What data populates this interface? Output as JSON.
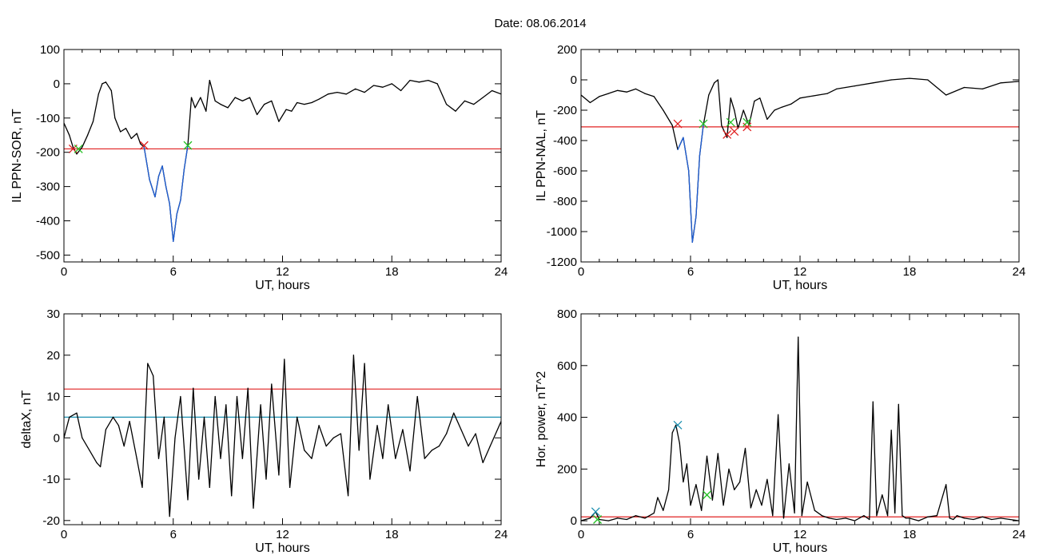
{
  "page_title": "Date:  08.06.2014",
  "chart_data": [
    {
      "type": "line",
      "panel": "top-left",
      "xlabel": "UT, hours",
      "ylabel": "IL PPN-SOR, nT",
      "xlim": [
        0,
        24
      ],
      "ylim": [
        -520,
        100
      ],
      "xticks": [
        0,
        6,
        12,
        18,
        24
      ],
      "yticks": [
        100,
        0,
        -100,
        -200,
        -300,
        -400,
        -500
      ],
      "series": [
        {
          "color": "#000000",
          "x": [
            0,
            0.3,
            0.5,
            0.7,
            1.0,
            1.3,
            1.6,
            1.9,
            2.1,
            2.3,
            2.6,
            2.8,
            3.1,
            3.4,
            3.7,
            4.0,
            4.2,
            4.4,
            4.7,
            5.0,
            5.2,
            5.4,
            5.6,
            5.8,
            6.0,
            6.2,
            6.4,
            6.6,
            6.8,
            7.0,
            7.2,
            7.5,
            7.8,
            8.0,
            8.3,
            8.6,
            9.0,
            9.4,
            9.8,
            10.2,
            10.6,
            11.0,
            11.4,
            11.8,
            12.2,
            12.5,
            12.8,
            13.2,
            13.6,
            14.0,
            14.5,
            15.0,
            15.5,
            16.0,
            16.5,
            17.0,
            17.5,
            18.0,
            18.5,
            19.0,
            19.5,
            20.0,
            20.5,
            21.0,
            21.5,
            22.0,
            22.5,
            23.0,
            23.5,
            24.0
          ],
          "y": [
            -115,
            -150,
            -185,
            -205,
            -185,
            -150,
            -110,
            -30,
            0,
            5,
            -20,
            -100,
            -140,
            -130,
            -160,
            -145,
            -175,
            -185,
            -280,
            -330,
            -270,
            -240,
            -300,
            -350,
            -460,
            -380,
            -340,
            -250,
            -180,
            -40,
            -70,
            -40,
            -80,
            10,
            -50,
            -60,
            -70,
            -40,
            -50,
            -40,
            -90,
            -60,
            -50,
            -110,
            -75,
            -80,
            -55,
            -60,
            -55,
            -45,
            -30,
            -25,
            -30,
            -15,
            -25,
            -5,
            -10,
            0,
            -20,
            10,
            5,
            10,
            0,
            -60,
            -80,
            -50,
            -60,
            -40,
            -20,
            -30
          ]
        },
        {
          "color": "#1f5fd6",
          "x": [
            4.4,
            4.7,
            5.0,
            5.2,
            5.4,
            5.6,
            5.8,
            6.0,
            6.2,
            6.4,
            6.6,
            6.8
          ],
          "y": [
            -185,
            -280,
            -330,
            -270,
            -240,
            -300,
            -350,
            -460,
            -380,
            -340,
            -250,
            -180
          ]
        }
      ],
      "thresholds": [
        {
          "color": "#e02020",
          "y": -190
        }
      ],
      "markers": [
        {
          "symbol": "x",
          "color": "#e02020",
          "x": 0.5,
          "y": -190
        },
        {
          "symbol": "x",
          "color": "#22c022",
          "x": 0.8,
          "y": -190
        },
        {
          "symbol": "x",
          "color": "#e02020",
          "x": 4.4,
          "y": -180
        },
        {
          "symbol": "x",
          "color": "#22c022",
          "x": 6.8,
          "y": -180
        }
      ]
    },
    {
      "type": "line",
      "panel": "top-right",
      "xlabel": "UT, hours",
      "ylabel": "IL PPN-NAL, nT",
      "xlim": [
        0,
        24
      ],
      "ylim": [
        -1200,
        200
      ],
      "xticks": [
        0,
        6,
        12,
        18,
        24
      ],
      "yticks": [
        200,
        0,
        -200,
        -400,
        -600,
        -800,
        -1000,
        -1200
      ],
      "series": [
        {
          "color": "#000000",
          "x": [
            0,
            0.5,
            1.0,
            1.5,
            2.0,
            2.5,
            3.0,
            3.5,
            4.0,
            4.5,
            5.0,
            5.3,
            5.6,
            5.9,
            6.1,
            6.3,
            6.5,
            6.7,
            7.0,
            7.3,
            7.5,
            7.7,
            8.0,
            8.2,
            8.4,
            8.6,
            8.9,
            9.2,
            9.5,
            9.8,
            10.2,
            10.6,
            11.0,
            11.5,
            12.0,
            12.5,
            13.0,
            13.5,
            14.0,
            14.5,
            15.0,
            16.0,
            17.0,
            18.0,
            19.0,
            20.0,
            21.0,
            22.0,
            23.0,
            24.0
          ],
          "y": [
            -100,
            -150,
            -110,
            -90,
            -70,
            -80,
            -60,
            -90,
            -110,
            -200,
            -300,
            -460,
            -380,
            -600,
            -1070,
            -900,
            -500,
            -300,
            -100,
            -20,
            0,
            -300,
            -380,
            -120,
            -200,
            -320,
            -200,
            -300,
            -140,
            -120,
            -260,
            -200,
            -180,
            -160,
            -120,
            -110,
            -100,
            -90,
            -60,
            -50,
            -40,
            -20,
            0,
            10,
            0,
            -100,
            -50,
            -60,
            -20,
            -10
          ]
        },
        {
          "color": "#1f5fd6",
          "x": [
            5.3,
            5.6,
            5.9,
            6.1,
            6.3,
            6.5,
            6.7
          ],
          "y": [
            -460,
            -380,
            -600,
            -1070,
            -900,
            -500,
            -300
          ]
        }
      ],
      "thresholds": [
        {
          "color": "#e02020",
          "y": -310
        }
      ],
      "markers": [
        {
          "symbol": "x",
          "color": "#e02020",
          "x": 5.3,
          "y": -290
        },
        {
          "symbol": "x",
          "color": "#22c022",
          "x": 6.7,
          "y": -290
        },
        {
          "symbol": "x",
          "color": "#e02020",
          "x": 8.0,
          "y": -360
        },
        {
          "symbol": "x",
          "color": "#22c022",
          "x": 8.2,
          "y": -280
        },
        {
          "symbol": "x",
          "color": "#e02020",
          "x": 8.4,
          "y": -340
        },
        {
          "symbol": "x",
          "color": "#e02020",
          "x": 9.1,
          "y": -310
        },
        {
          "symbol": "x",
          "color": "#22c022",
          "x": 9.1,
          "y": -280
        }
      ]
    },
    {
      "type": "line",
      "panel": "bottom-left",
      "xlabel": "UT, hours",
      "ylabel": "deltaX, nT",
      "xlim": [
        0,
        24
      ],
      "ylim": [
        -21,
        30
      ],
      "xticks": [
        0,
        6,
        12,
        18,
        24
      ],
      "yticks": [
        30,
        20,
        10,
        0,
        -10,
        -20
      ],
      "series": [
        {
          "color": "#000000",
          "x": [
            0,
            0.3,
            0.7,
            1.0,
            1.4,
            1.8,
            2.0,
            2.3,
            2.7,
            3.0,
            3.3,
            3.6,
            4.0,
            4.3,
            4.6,
            4.9,
            5.2,
            5.5,
            5.8,
            6.1,
            6.4,
            6.8,
            7.1,
            7.4,
            7.7,
            8.0,
            8.3,
            8.6,
            8.9,
            9.2,
            9.5,
            9.8,
            10.1,
            10.4,
            10.8,
            11.1,
            11.4,
            11.8,
            12.1,
            12.4,
            12.8,
            13.2,
            13.6,
            14.0,
            14.4,
            14.8,
            15.2,
            15.6,
            15.9,
            16.2,
            16.5,
            16.8,
            17.2,
            17.5,
            17.8,
            18.2,
            18.6,
            19.0,
            19.4,
            19.8,
            20.2,
            20.6,
            21.0,
            21.4,
            21.8,
            22.2,
            22.6,
            23.0,
            23.4,
            24.0
          ],
          "y": [
            0,
            5,
            6,
            0,
            -3,
            -6,
            -7,
            2,
            5,
            3,
            -2,
            4,
            -5,
            -12,
            18,
            15,
            -5,
            5,
            -19,
            0,
            10,
            -15,
            12,
            -10,
            5,
            -12,
            10,
            -5,
            8,
            -14,
            10,
            -5,
            12,
            -17,
            8,
            -10,
            13,
            -9,
            19,
            -12,
            5,
            -3,
            -5,
            3,
            -2,
            0,
            1,
            -14,
            20,
            -3,
            18,
            -10,
            3,
            -5,
            8,
            -5,
            2,
            -8,
            10,
            -5,
            -3,
            -2,
            1,
            6,
            2,
            -2,
            1,
            -6,
            -2,
            4
          ]
        }
      ],
      "thresholds": [
        {
          "color": "#e02020",
          "y": 11.8
        },
        {
          "color": "#1a8fb0",
          "y": 5
        }
      ]
    },
    {
      "type": "line",
      "panel": "bottom-right",
      "xlabel": "UT, hours",
      "ylabel": "Hor. power, nT^2",
      "xlim": [
        0,
        24
      ],
      "ylim": [
        -15,
        800
      ],
      "xticks": [
        0,
        6,
        12,
        18,
        24
      ],
      "yticks": [
        800,
        600,
        400,
        200,
        0
      ],
      "series": [
        {
          "color": "#000000",
          "x": [
            0,
            0.5,
            0.8,
            1.0,
            1.5,
            2.0,
            2.5,
            3.0,
            3.5,
            4.0,
            4.2,
            4.5,
            4.8,
            5.0,
            5.2,
            5.4,
            5.6,
            5.8,
            6.0,
            6.3,
            6.6,
            6.9,
            7.2,
            7.5,
            7.8,
            8.1,
            8.4,
            8.7,
            9.0,
            9.3,
            9.6,
            9.9,
            10.2,
            10.5,
            10.8,
            11.1,
            11.4,
            11.7,
            11.9,
            12.1,
            12.4,
            12.8,
            13.2,
            13.6,
            14.0,
            14.5,
            15.0,
            15.5,
            15.8,
            16.0,
            16.2,
            16.5,
            16.8,
            17.0,
            17.2,
            17.4,
            17.6,
            17.8,
            18.0,
            18.5,
            19.0,
            19.5,
            20.0,
            20.2,
            20.4,
            20.6,
            21.0,
            21.5,
            22.0,
            22.5,
            23.0,
            23.5,
            24.0
          ],
          "y": [
            0,
            10,
            35,
            5,
            0,
            10,
            5,
            20,
            10,
            30,
            90,
            40,
            120,
            340,
            370,
            300,
            150,
            220,
            60,
            140,
            40,
            250,
            80,
            260,
            60,
            200,
            120,
            150,
            280,
            50,
            120,
            60,
            160,
            20,
            410,
            10,
            220,
            30,
            710,
            20,
            150,
            40,
            20,
            10,
            5,
            10,
            0,
            20,
            5,
            460,
            20,
            100,
            20,
            350,
            30,
            450,
            20,
            10,
            10,
            0,
            15,
            20,
            140,
            10,
            5,
            20,
            10,
            5,
            15,
            5,
            10,
            5,
            0
          ]
        }
      ],
      "thresholds": [
        {
          "color": "#e02020",
          "y": 15
        }
      ],
      "markers": [
        {
          "symbol": "x",
          "color": "#1a8fb0",
          "x": 0.8,
          "y": 35
        },
        {
          "symbol": "x",
          "color": "#22c022",
          "x": 0.9,
          "y": 5
        },
        {
          "symbol": "x",
          "color": "#1a8fb0",
          "x": 5.3,
          "y": 370
        },
        {
          "symbol": "x",
          "color": "#22c022",
          "x": 6.9,
          "y": 100
        }
      ]
    }
  ]
}
